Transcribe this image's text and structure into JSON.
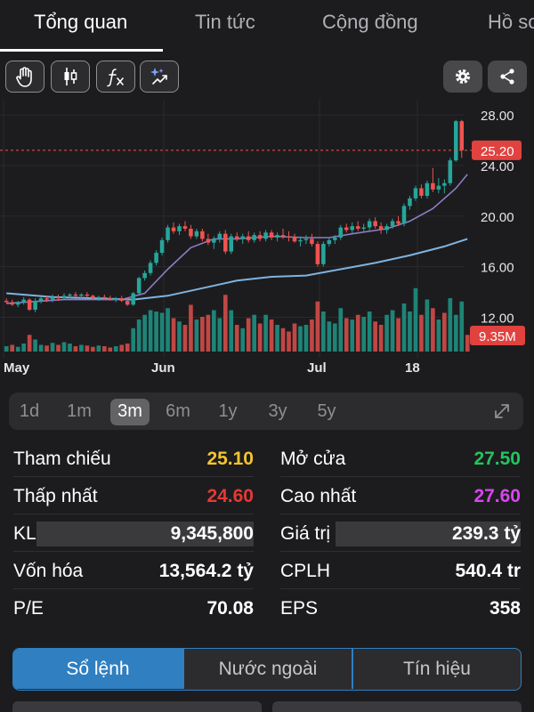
{
  "tabs": [
    {
      "label": "Tổng quan",
      "active": true
    },
    {
      "label": "Tin tức",
      "active": false
    },
    {
      "label": "Cộng đồng",
      "active": false
    },
    {
      "label": "Hồ sơ",
      "active": false
    }
  ],
  "toolbar": {
    "left_tools": [
      "hand-icon",
      "candlestick-icon",
      "function-icon",
      "ai-sparkle-icon"
    ],
    "right_tools": [
      "gear-icon",
      "share-icon"
    ]
  },
  "chart_data": {
    "type": "candlestick",
    "x_ticks": [
      "May",
      "Jun",
      "Jul",
      "18"
    ],
    "y_ticks": [
      "28.00",
      "24.00",
      "20.00",
      "16.00",
      "12.00"
    ],
    "ylim": [
      8.8,
      29.2
    ],
    "last_price_label": "25.20",
    "last_price": 25.2,
    "volume_label": "9.35M",
    "colors": {
      "up": "#26a69a",
      "down": "#ef5350",
      "ma_short": "#8e7cc3",
      "ma_long": "#7fb3e0",
      "price_line": "#ef5350"
    },
    "candles": [
      {
        "o": 13.3,
        "h": 13.5,
        "l": 13.1,
        "c": 13.2
      },
      {
        "o": 13.2,
        "h": 13.4,
        "l": 12.9,
        "c": 13.0
      },
      {
        "o": 13.0,
        "h": 13.3,
        "l": 12.8,
        "c": 13.2
      },
      {
        "o": 13.2,
        "h": 13.6,
        "l": 13.0,
        "c": 13.4
      },
      {
        "o": 13.4,
        "h": 13.5,
        "l": 12.5,
        "c": 12.6
      },
      {
        "o": 12.6,
        "h": 13.5,
        "l": 12.4,
        "c": 13.3
      },
      {
        "o": 13.3,
        "h": 13.6,
        "l": 13.1,
        "c": 13.5
      },
      {
        "o": 13.5,
        "h": 13.7,
        "l": 13.2,
        "c": 13.4
      },
      {
        "o": 13.4,
        "h": 13.8,
        "l": 13.2,
        "c": 13.6
      },
      {
        "o": 13.6,
        "h": 13.8,
        "l": 13.3,
        "c": 13.5
      },
      {
        "o": 13.5,
        "h": 13.9,
        "l": 13.4,
        "c": 13.7
      },
      {
        "o": 13.7,
        "h": 13.9,
        "l": 13.5,
        "c": 13.8
      },
      {
        "o": 13.8,
        "h": 14.0,
        "l": 13.6,
        "c": 13.7
      },
      {
        "o": 13.7,
        "h": 13.9,
        "l": 13.5,
        "c": 13.8
      },
      {
        "o": 13.8,
        "h": 14.0,
        "l": 13.6,
        "c": 13.7
      },
      {
        "o": 13.7,
        "h": 13.8,
        "l": 13.4,
        "c": 13.5
      },
      {
        "o": 13.5,
        "h": 13.7,
        "l": 13.3,
        "c": 13.6
      },
      {
        "o": 13.6,
        "h": 13.8,
        "l": 13.4,
        "c": 13.5
      },
      {
        "o": 13.5,
        "h": 13.7,
        "l": 13.3,
        "c": 13.4
      },
      {
        "o": 13.4,
        "h": 13.6,
        "l": 13.2,
        "c": 13.5
      },
      {
        "o": 13.5,
        "h": 13.7,
        "l": 13.2,
        "c": 13.3
      },
      {
        "o": 13.3,
        "h": 13.5,
        "l": 12.9,
        "c": 13.0
      },
      {
        "o": 13.0,
        "h": 14.0,
        "l": 12.9,
        "c": 13.9
      },
      {
        "o": 13.9,
        "h": 15.2,
        "l": 13.8,
        "c": 15.1
      },
      {
        "o": 15.1,
        "h": 15.7,
        "l": 14.9,
        "c": 15.5
      },
      {
        "o": 15.5,
        "h": 16.5,
        "l": 15.3,
        "c": 16.3
      },
      {
        "o": 16.3,
        "h": 17.3,
        "l": 16.1,
        "c": 17.1
      },
      {
        "o": 17.1,
        "h": 18.3,
        "l": 16.9,
        "c": 18.1
      },
      {
        "o": 18.1,
        "h": 19.3,
        "l": 17.9,
        "c": 19.1
      },
      {
        "o": 19.1,
        "h": 19.5,
        "l": 18.6,
        "c": 18.8
      },
      {
        "o": 18.8,
        "h": 19.4,
        "l": 18.5,
        "c": 19.2
      },
      {
        "o": 19.2,
        "h": 19.6,
        "l": 18.8,
        "c": 19.0
      },
      {
        "o": 19.0,
        "h": 19.3,
        "l": 18.2,
        "c": 18.4
      },
      {
        "o": 18.4,
        "h": 19.0,
        "l": 18.2,
        "c": 18.8
      },
      {
        "o": 18.8,
        "h": 19.0,
        "l": 18.0,
        "c": 18.2
      },
      {
        "o": 18.2,
        "h": 18.6,
        "l": 17.7,
        "c": 17.9
      },
      {
        "o": 17.9,
        "h": 18.4,
        "l": 17.4,
        "c": 18.2
      },
      {
        "o": 18.2,
        "h": 18.8,
        "l": 17.9,
        "c": 18.6
      },
      {
        "o": 18.6,
        "h": 18.9,
        "l": 17.0,
        "c": 17.2
      },
      {
        "o": 17.2,
        "h": 18.6,
        "l": 17.0,
        "c": 18.4
      },
      {
        "o": 18.4,
        "h": 18.7,
        "l": 18.0,
        "c": 18.2
      },
      {
        "o": 18.2,
        "h": 18.6,
        "l": 17.8,
        "c": 18.4
      },
      {
        "o": 18.4,
        "h": 18.8,
        "l": 17.9,
        "c": 18.1
      },
      {
        "o": 18.1,
        "h": 18.7,
        "l": 17.9,
        "c": 18.5
      },
      {
        "o": 18.5,
        "h": 18.8,
        "l": 18.0,
        "c": 18.2
      },
      {
        "o": 18.2,
        "h": 18.9,
        "l": 18.0,
        "c": 18.7
      },
      {
        "o": 18.7,
        "h": 18.9,
        "l": 18.1,
        "c": 18.3
      },
      {
        "o": 18.3,
        "h": 18.7,
        "l": 18.0,
        "c": 18.5
      },
      {
        "o": 18.5,
        "h": 19.0,
        "l": 18.2,
        "c": 18.4
      },
      {
        "o": 18.4,
        "h": 18.8,
        "l": 18.0,
        "c": 18.3
      },
      {
        "o": 18.3,
        "h": 18.6,
        "l": 17.9,
        "c": 18.0
      },
      {
        "o": 18.0,
        "h": 18.4,
        "l": 17.6,
        "c": 18.1
      },
      {
        "o": 18.1,
        "h": 18.5,
        "l": 17.8,
        "c": 18.2
      },
      {
        "o": 18.2,
        "h": 18.6,
        "l": 17.6,
        "c": 17.8
      },
      {
        "o": 17.8,
        "h": 18.0,
        "l": 16.0,
        "c": 16.2
      },
      {
        "o": 16.2,
        "h": 18.0,
        "l": 16.0,
        "c": 17.8
      },
      {
        "o": 17.8,
        "h": 18.3,
        "l": 17.6,
        "c": 18.1
      },
      {
        "o": 18.1,
        "h": 18.5,
        "l": 17.8,
        "c": 18.3
      },
      {
        "o": 18.3,
        "h": 19.3,
        "l": 18.1,
        "c": 19.1
      },
      {
        "o": 19.1,
        "h": 19.4,
        "l": 18.7,
        "c": 18.9
      },
      {
        "o": 18.9,
        "h": 19.5,
        "l": 18.6,
        "c": 19.2
      },
      {
        "o": 19.2,
        "h": 19.6,
        "l": 18.8,
        "c": 19.0
      },
      {
        "o": 19.0,
        "h": 19.4,
        "l": 18.7,
        "c": 19.1
      },
      {
        "o": 19.1,
        "h": 19.8,
        "l": 18.8,
        "c": 19.6
      },
      {
        "o": 19.6,
        "h": 19.9,
        "l": 19.0,
        "c": 19.2
      },
      {
        "o": 19.2,
        "h": 19.5,
        "l": 18.6,
        "c": 18.9
      },
      {
        "o": 18.9,
        "h": 19.4,
        "l": 18.6,
        "c": 19.2
      },
      {
        "o": 19.2,
        "h": 19.8,
        "l": 19.0,
        "c": 19.6
      },
      {
        "o": 19.6,
        "h": 20.0,
        "l": 19.2,
        "c": 19.4
      },
      {
        "o": 19.4,
        "h": 21.0,
        "l": 19.2,
        "c": 20.8
      },
      {
        "o": 20.8,
        "h": 21.6,
        "l": 20.5,
        "c": 21.4
      },
      {
        "o": 21.4,
        "h": 22.4,
        "l": 21.2,
        "c": 22.2
      },
      {
        "o": 22.2,
        "h": 22.5,
        "l": 21.4,
        "c": 21.6
      },
      {
        "o": 21.6,
        "h": 22.8,
        "l": 21.4,
        "c": 22.6
      },
      {
        "o": 22.6,
        "h": 23.8,
        "l": 21.9,
        "c": 22.1
      },
      {
        "o": 22.1,
        "h": 23.0,
        "l": 21.8,
        "c": 22.4
      },
      {
        "o": 22.4,
        "h": 22.9,
        "l": 21.8,
        "c": 22.6
      },
      {
        "o": 22.6,
        "h": 24.6,
        "l": 22.4,
        "c": 24.4
      },
      {
        "o": 24.4,
        "h": 27.6,
        "l": 24.3,
        "c": 27.5
      },
      {
        "o": 27.5,
        "h": 27.6,
        "l": 24.6,
        "c": 25.2
      }
    ],
    "ma_short": [
      [
        0,
        13.1
      ],
      [
        10,
        13.4
      ],
      [
        20,
        13.4
      ],
      [
        24,
        13.9
      ],
      [
        28,
        15.8
      ],
      [
        32,
        17.5
      ],
      [
        36,
        18.2
      ],
      [
        40,
        18.2
      ],
      [
        46,
        18.4
      ],
      [
        52,
        18.3
      ],
      [
        56,
        18.3
      ],
      [
        60,
        18.6
      ],
      [
        66,
        19.0
      ],
      [
        70,
        19.6
      ],
      [
        74,
        20.6
      ],
      [
        78,
        22.2
      ],
      [
        80,
        23.3
      ]
    ],
    "ma_long": [
      [
        0,
        13.9
      ],
      [
        8,
        13.6
      ],
      [
        16,
        13.5
      ],
      [
        22,
        13.4
      ],
      [
        28,
        13.7
      ],
      [
        34,
        14.3
      ],
      [
        40,
        14.9
      ],
      [
        46,
        15.2
      ],
      [
        52,
        15.3
      ],
      [
        58,
        15.8
      ],
      [
        64,
        16.3
      ],
      [
        70,
        16.9
      ],
      [
        76,
        17.6
      ],
      [
        80,
        18.2
      ]
    ],
    "volume": [
      {
        "v": 0.08,
        "up": true
      },
      {
        "v": 0.1,
        "up": false
      },
      {
        "v": 0.07,
        "up": true
      },
      {
        "v": 0.12,
        "up": true
      },
      {
        "v": 0.25,
        "up": false
      },
      {
        "v": 0.18,
        "up": true
      },
      {
        "v": 0.1,
        "up": true
      },
      {
        "v": 0.09,
        "up": false
      },
      {
        "v": 0.13,
        "up": true
      },
      {
        "v": 0.1,
        "up": false
      },
      {
        "v": 0.14,
        "up": true
      },
      {
        "v": 0.12,
        "up": true
      },
      {
        "v": 0.08,
        "up": false
      },
      {
        "v": 0.1,
        "up": true
      },
      {
        "v": 0.09,
        "up": false
      },
      {
        "v": 0.07,
        "up": false
      },
      {
        "v": 0.09,
        "up": true
      },
      {
        "v": 0.08,
        "up": false
      },
      {
        "v": 0.06,
        "up": false
      },
      {
        "v": 0.08,
        "up": true
      },
      {
        "v": 0.1,
        "up": false
      },
      {
        "v": 0.12,
        "up": false
      },
      {
        "v": 0.35,
        "up": true
      },
      {
        "v": 0.48,
        "up": true
      },
      {
        "v": 0.55,
        "up": true
      },
      {
        "v": 0.62,
        "up": true
      },
      {
        "v": 0.6,
        "up": true
      },
      {
        "v": 0.58,
        "up": true
      },
      {
        "v": 0.65,
        "up": true
      },
      {
        "v": 0.5,
        "up": false
      },
      {
        "v": 0.45,
        "up": true
      },
      {
        "v": 0.4,
        "up": false
      },
      {
        "v": 0.7,
        "up": false
      },
      {
        "v": 0.48,
        "up": true
      },
      {
        "v": 0.52,
        "up": false
      },
      {
        "v": 0.55,
        "up": false
      },
      {
        "v": 0.62,
        "up": true
      },
      {
        "v": 0.5,
        "up": true
      },
      {
        "v": 0.85,
        "up": false
      },
      {
        "v": 0.62,
        "up": true
      },
      {
        "v": 0.4,
        "up": false
      },
      {
        "v": 0.35,
        "up": true
      },
      {
        "v": 0.5,
        "up": false
      },
      {
        "v": 0.55,
        "up": true
      },
      {
        "v": 0.42,
        "up": false
      },
      {
        "v": 0.55,
        "up": true
      },
      {
        "v": 0.48,
        "up": false
      },
      {
        "v": 0.4,
        "up": true
      },
      {
        "v": 0.35,
        "up": false
      },
      {
        "v": 0.3,
        "up": false
      },
      {
        "v": 0.42,
        "up": false
      },
      {
        "v": 0.38,
        "up": true
      },
      {
        "v": 0.4,
        "up": true
      },
      {
        "v": 0.48,
        "up": false
      },
      {
        "v": 0.75,
        "up": false
      },
      {
        "v": 0.6,
        "up": true
      },
      {
        "v": 0.45,
        "up": true
      },
      {
        "v": 0.42,
        "up": true
      },
      {
        "v": 0.65,
        "up": true
      },
      {
        "v": 0.5,
        "up": false
      },
      {
        "v": 0.48,
        "up": true
      },
      {
        "v": 0.55,
        "up": false
      },
      {
        "v": 0.52,
        "up": true
      },
      {
        "v": 0.6,
        "up": true
      },
      {
        "v": 0.45,
        "up": false
      },
      {
        "v": 0.4,
        "up": false
      },
      {
        "v": 0.55,
        "up": true
      },
      {
        "v": 0.62,
        "up": true
      },
      {
        "v": 0.5,
        "up": false
      },
      {
        "v": 0.72,
        "up": true
      },
      {
        "v": 0.6,
        "up": true
      },
      {
        "v": 0.95,
        "up": true
      },
      {
        "v": 0.55,
        "up": false
      },
      {
        "v": 0.78,
        "up": true
      },
      {
        "v": 0.65,
        "up": false
      },
      {
        "v": 0.48,
        "up": true
      },
      {
        "v": 0.58,
        "up": false
      },
      {
        "v": 0.8,
        "up": true
      },
      {
        "v": 0.55,
        "up": true
      },
      {
        "v": 0.75,
        "up": true
      },
      {
        "v": 0.25,
        "up": false
      }
    ]
  },
  "periods": {
    "items": [
      "1d",
      "1m",
      "3m",
      "6m",
      "1y",
      "3y",
      "5y"
    ],
    "active": "3m"
  },
  "stats": {
    "tham_chieu": {
      "label": "Tham chiếu",
      "value": "25.10",
      "color": "#f4c430"
    },
    "mo_cua": {
      "label": "Mở cửa",
      "value": "27.50",
      "color": "#22c55e"
    },
    "thap_nhat": {
      "label": "Thấp nhất",
      "value": "24.60",
      "color": "#e53935"
    },
    "cao_nhat": {
      "label": "Cao nhất",
      "value": "27.60",
      "color": "#d946ef"
    },
    "kl": {
      "label": "KL",
      "value": "9,345,800"
    },
    "gia_tri": {
      "label": "Giá trị",
      "value": "239.3 tỷ"
    },
    "von_hoa": {
      "label": "Vốn hóa",
      "value": "13,564.2 tỷ"
    },
    "cplh": {
      "label": "CPLH",
      "value": "540.4 tr"
    },
    "pe": {
      "label": "P/E",
      "value": "70.08"
    },
    "eps": {
      "label": "EPS",
      "value": "358"
    }
  },
  "segment": {
    "items": [
      "Sổ lệnh",
      "Nước ngoài",
      "Tín hiệu"
    ],
    "active": "Sổ lệnh"
  }
}
